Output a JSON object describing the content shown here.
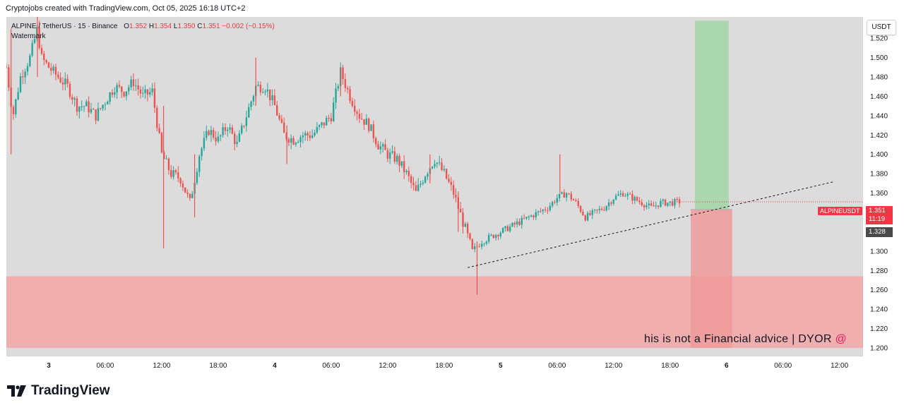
{
  "header": {
    "attribution": "Cryptojobs created with TradingView.com, Oct 05, 2025 16:18 UTC+2"
  },
  "legend": {
    "symbol": "ALPINE / TetherUS · 15 · Binance",
    "o_label": "O",
    "o_value": "1.352",
    "h_label": "H",
    "h_value": "1.354",
    "l_label": "L",
    "l_value": "1.350",
    "c_label": "C",
    "c_value": "1.351",
    "change": "−0.002 (−0.15%)",
    "watermark": "Watermark"
  },
  "currency_button": "USDT",
  "price_tags": {
    "symbol_tag": "ALPINEUSDT",
    "last_price": "1.351",
    "countdown": "11:19",
    "level_price": "1.328"
  },
  "disclaimer": {
    "text": "his is not a Financial advice | DYOR ",
    "at": "@"
  },
  "brand": {
    "name": "TradingView"
  },
  "colors": {
    "up": "#26a69a",
    "down": "#ef5350",
    "accent_red": "#f23645",
    "target_zone": "#a5d6a7",
    "stop_zone": "#ef9a9a",
    "demand_zone": "#f4a6a6"
  },
  "chart_data": {
    "type": "candlestick",
    "symbol": "ALPINE / TetherUS",
    "interval": "15",
    "exchange": "Binance",
    "last": {
      "open": 1.352,
      "high": 1.354,
      "low": 1.35,
      "close": 1.351,
      "change": -0.002,
      "change_pct": -0.15
    },
    "ylim": [
      1.192,
      1.542
    ],
    "y_ticks": [
      "1.520",
      "1.500",
      "1.480",
      "1.460",
      "1.440",
      "1.420",
      "1.400",
      "1.380",
      "1.360",
      "1.340",
      "1.320",
      "1.300",
      "1.280",
      "1.260",
      "1.240",
      "1.220",
      "1.200"
    ],
    "x_ticks": [
      {
        "label": "3",
        "t": 0
      },
      {
        "label": "06:00",
        "t": 6
      },
      {
        "label": "12:00",
        "t": 12
      },
      {
        "label": "18:00",
        "t": 18
      },
      {
        "label": "4",
        "t": 24
      },
      {
        "label": "06:00",
        "t": 30
      },
      {
        "label": "12:00",
        "t": 36
      },
      {
        "label": "18:00",
        "t": 42
      },
      {
        "label": "5",
        "t": 48
      },
      {
        "label": "06:00",
        "t": 54
      },
      {
        "label": "12:00",
        "t": 60
      },
      {
        "label": "18:00",
        "t": 66
      },
      {
        "label": "6",
        "t": 72
      },
      {
        "label": "06:00",
        "t": 78
      },
      {
        "label": "12:00",
        "t": 84
      }
    ],
    "xlim": [
      -4.5,
      86.5
    ],
    "price_path": [
      [
        -4.5,
        1.49
      ],
      [
        -3.8,
        1.44
      ],
      [
        -3,
        1.48
      ],
      [
        -2,
        1.5
      ],
      [
        -1.2,
        1.53
      ],
      [
        -0.8,
        1.5
      ],
      [
        0,
        1.49
      ],
      [
        1,
        1.48
      ],
      [
        2,
        1.47
      ],
      [
        3,
        1.45
      ],
      [
        4,
        1.45
      ],
      [
        5,
        1.44
      ],
      [
        6,
        1.455
      ],
      [
        7,
        1.47
      ],
      [
        8,
        1.465
      ],
      [
        9,
        1.475
      ],
      [
        10,
        1.46
      ],
      [
        11,
        1.465
      ],
      [
        12,
        1.4
      ],
      [
        13,
        1.38
      ],
      [
        14,
        1.375
      ],
      [
        15,
        1.35
      ],
      [
        16,
        1.4
      ],
      [
        17,
        1.425
      ],
      [
        18,
        1.415
      ],
      [
        19,
        1.43
      ],
      [
        20,
        1.41
      ],
      [
        21,
        1.44
      ],
      [
        22,
        1.47
      ],
      [
        23,
        1.47
      ],
      [
        24,
        1.45
      ],
      [
        25,
        1.42
      ],
      [
        26,
        1.415
      ],
      [
        27,
        1.42
      ],
      [
        28,
        1.42
      ],
      [
        29,
        1.43
      ],
      [
        30,
        1.44
      ],
      [
        31,
        1.485
      ],
      [
        32,
        1.46
      ],
      [
        33,
        1.44
      ],
      [
        34,
        1.43
      ],
      [
        35,
        1.41
      ],
      [
        36,
        1.4
      ],
      [
        37,
        1.395
      ],
      [
        38,
        1.38
      ],
      [
        39,
        1.36
      ],
      [
        40,
        1.38
      ],
      [
        41,
        1.395
      ],
      [
        42,
        1.38
      ],
      [
        43,
        1.36
      ],
      [
        44,
        1.33
      ],
      [
        45,
        1.3
      ],
      [
        46,
        1.31
      ],
      [
        47,
        1.315
      ],
      [
        48,
        1.32
      ],
      [
        49,
        1.325
      ],
      [
        50,
        1.33
      ],
      [
        51,
        1.335
      ],
      [
        52,
        1.34
      ],
      [
        53,
        1.345
      ],
      [
        54,
        1.355
      ],
      [
        55,
        1.36
      ],
      [
        56,
        1.35
      ],
      [
        57,
        1.335
      ],
      [
        58,
        1.34
      ],
      [
        59,
        1.345
      ],
      [
        60,
        1.355
      ],
      [
        61,
        1.36
      ],
      [
        62,
        1.355
      ],
      [
        63,
        1.35
      ],
      [
        64,
        1.345
      ],
      [
        65,
        1.35
      ],
      [
        66,
        1.35
      ],
      [
        67,
        1.351
      ]
    ],
    "spikes": [
      {
        "t": -4,
        "high": 1.53,
        "low": 1.4
      },
      {
        "t": -1.2,
        "high": 1.545,
        "low": 1.48
      },
      {
        "t": 12.2,
        "high": 1.45,
        "low": 1.303
      },
      {
        "t": 15.5,
        "high": 1.4,
        "low": 1.335
      },
      {
        "t": 22,
        "high": 1.5,
        "low": 1.45
      },
      {
        "t": 25.3,
        "high": 1.43,
        "low": 1.39
      },
      {
        "t": 31,
        "high": 1.49,
        "low": 1.46
      },
      {
        "t": 40.5,
        "high": 1.4,
        "low": 1.37
      },
      {
        "t": 43.5,
        "high": 1.36,
        "low": 1.32
      },
      {
        "t": 45.5,
        "high": 1.31,
        "low": 1.255
      },
      {
        "t": 54.3,
        "high": 1.4,
        "low": 1.36
      }
    ],
    "trendline": {
      "start": [
        44.5,
        1.283
      ],
      "end": [
        83.5,
        1.372
      ],
      "style": "dashed"
    },
    "position": {
      "t_start": 68.2,
      "t_end": 72.6,
      "entry": 1.343,
      "target": 1.538,
      "stop": 1.2
    },
    "zones": [
      {
        "type": "demand",
        "y_from": 1.2,
        "y_to": 1.274
      },
      {
        "type": "target",
        "y_from": 1.343,
        "y_to": 1.538
      },
      {
        "type": "stop",
        "y_from": 1.2,
        "y_to": 1.343
      }
    ]
  }
}
